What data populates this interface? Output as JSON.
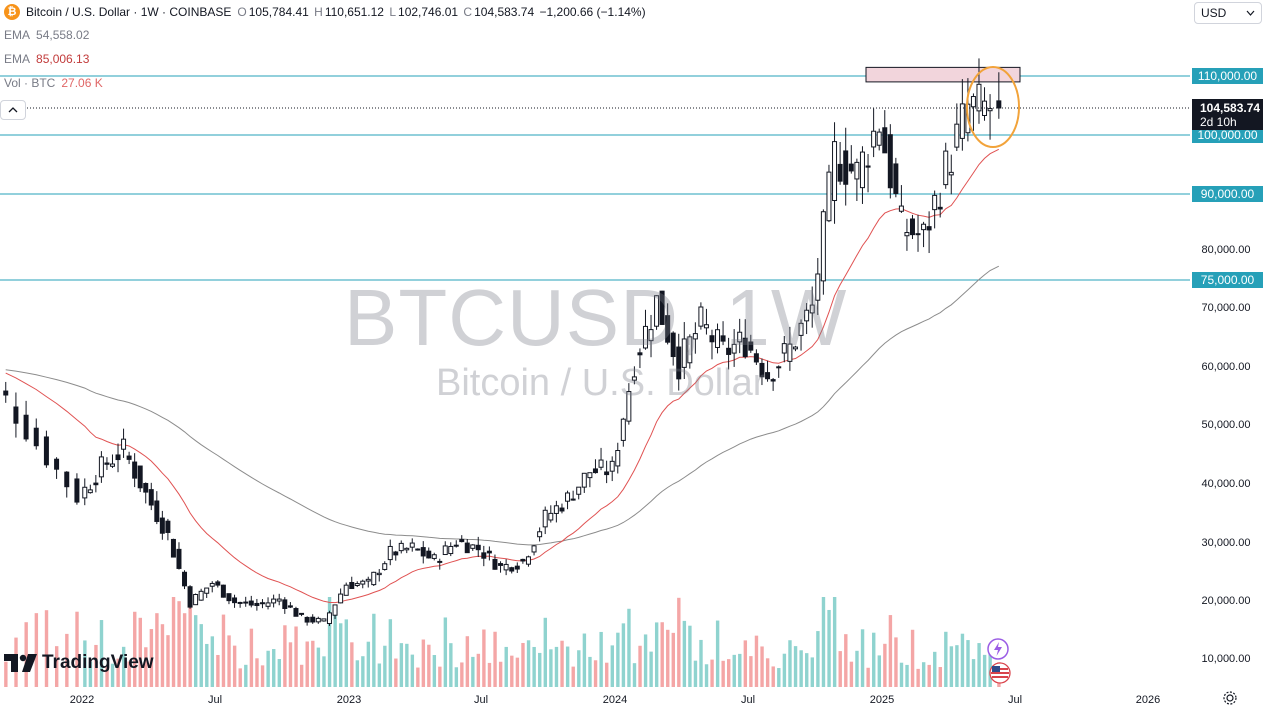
{
  "legend": {
    "symbol_glyph": "₿",
    "symbol": "Bitcoin / U.S. Dollar · 1W · COINBASE",
    "o_label": "O",
    "o_value": "105,784.41",
    "h_label": "H",
    "h_value": "110,651.12",
    "l_label": "L",
    "l_value": "102,746.01",
    "c_label": "C",
    "c_value": "104,583.74",
    "change": "−1,200.66 (−1.14%)",
    "ema1_label": "EMA",
    "ema1_value": "54,558.02",
    "ema2_label": "EMA",
    "ema2_value": "85,006.13",
    "vol_label": "Vol · BTC",
    "vol_value": "27.06 K",
    "collapse_icon": "chevron-up-icon"
  },
  "toolbar": {
    "currency": "USD"
  },
  "watermark": {
    "title": "BTCUSD, 1W",
    "subtitle": "Bitcoin / U.S. Dollar"
  },
  "branding": {
    "logo_text": "TradingView"
  },
  "price_badge": {
    "price": "104,583.74",
    "countdown": "2d 10h"
  },
  "colors": {
    "up": "#131722",
    "down": "#131722",
    "hline": "#26a0b8",
    "ema_long": "#8c8c8c",
    "ema_short": "#e05252",
    "vol_up": "#8fd3cf",
    "vol_down": "#f4a6a6",
    "zone": "#f2d5dc",
    "circle": "#f2a33a"
  },
  "chart_data": {
    "type": "candlestick",
    "title": "Bitcoin / U.S. Dollar, 1W, COINBASE",
    "ylim": [
      5000,
      118000
    ],
    "y_ticks": [
      10000,
      20000,
      30000,
      40000,
      50000,
      60000,
      70000,
      80000
    ],
    "y_tick_labels": [
      "10,000.00",
      "20,000.00",
      "30,000.00",
      "40,000.00",
      "50,000.00",
      "60,000.00",
      "70,000.00",
      "80,000.00"
    ],
    "horizontal_levels": [
      {
        "value": 110000,
        "label": "110,000.00"
      },
      {
        "value": 100000,
        "label": "100,000.00"
      },
      {
        "value": 90000,
        "label": "90,000.00"
      },
      {
        "value": 75000,
        "label": "75,000.00"
      }
    ],
    "last_price": 104583.74,
    "x_ticks": [
      {
        "label": "2022",
        "date": "2022-01"
      },
      {
        "label": "Jul",
        "date": "2022-07"
      },
      {
        "label": "2023",
        "date": "2023-01"
      },
      {
        "label": "Jul",
        "date": "2023-07"
      },
      {
        "label": "2024",
        "date": "2024-01"
      },
      {
        "label": "Jul",
        "date": "2024-07"
      },
      {
        "label": "2025",
        "date": "2025-01"
      },
      {
        "label": "Jul",
        "date": "2025-07"
      },
      {
        "label": "2026",
        "date": "2026-01"
      }
    ],
    "weekly_closes_approx": [
      {
        "month": "2021-10",
        "close": 61000
      },
      {
        "month": "2021-11",
        "close": 57000
      },
      {
        "month": "2021-12",
        "close": 47000
      },
      {
        "month": "2022-01",
        "close": 38000
      },
      {
        "month": "2022-02",
        "close": 43000
      },
      {
        "month": "2022-03",
        "close": 46000
      },
      {
        "month": "2022-04",
        "close": 38500
      },
      {
        "month": "2022-05",
        "close": 31500
      },
      {
        "month": "2022-06",
        "close": 19900
      },
      {
        "month": "2022-07",
        "close": 23300
      },
      {
        "month": "2022-08",
        "close": 20000
      },
      {
        "month": "2022-09",
        "close": 19400
      },
      {
        "month": "2022-10",
        "close": 20500
      },
      {
        "month": "2022-11",
        "close": 17200
      },
      {
        "month": "2022-12",
        "close": 16500
      },
      {
        "month": "2023-01",
        "close": 23100
      },
      {
        "month": "2023-02",
        "close": 23100
      },
      {
        "month": "2023-03",
        "close": 28500
      },
      {
        "month": "2023-04",
        "close": 29300
      },
      {
        "month": "2023-05",
        "close": 27200
      },
      {
        "month": "2023-06",
        "close": 30500
      },
      {
        "month": "2023-07",
        "close": 29200
      },
      {
        "month": "2023-08",
        "close": 26000
      },
      {
        "month": "2023-09",
        "close": 27000
      },
      {
        "month": "2023-10",
        "close": 34500
      },
      {
        "month": "2023-11",
        "close": 37700
      },
      {
        "month": "2023-12",
        "close": 42300
      },
      {
        "month": "2024-01",
        "close": 42600
      },
      {
        "month": "2024-02",
        "close": 61200
      },
      {
        "month": "2024-03",
        "close": 71300
      },
      {
        "month": "2024-04",
        "close": 60700
      },
      {
        "month": "2024-05",
        "close": 67500
      },
      {
        "month": "2024-06",
        "close": 62700
      },
      {
        "month": "2024-07",
        "close": 64600
      },
      {
        "month": "2024-08",
        "close": 59000
      },
      {
        "month": "2024-09",
        "close": 63300
      },
      {
        "month": "2024-10",
        "close": 70200
      },
      {
        "month": "2024-11",
        "close": 96400
      },
      {
        "month": "2024-12",
        "close": 93400
      },
      {
        "month": "2025-01",
        "close": 102400
      },
      {
        "month": "2025-02",
        "close": 84300
      },
      {
        "month": "2025-03",
        "close": 82500
      },
      {
        "month": "2025-04",
        "close": 94200
      },
      {
        "month": "2025-05",
        "close": 104600
      },
      {
        "month": "2025-06",
        "close": 104583
      }
    ],
    "ema_short": {
      "name": "EMA",
      "last": 85006.13
    },
    "ema_long": {
      "name": "EMA",
      "last": 54558.02
    },
    "volume_unit": "BTC"
  }
}
